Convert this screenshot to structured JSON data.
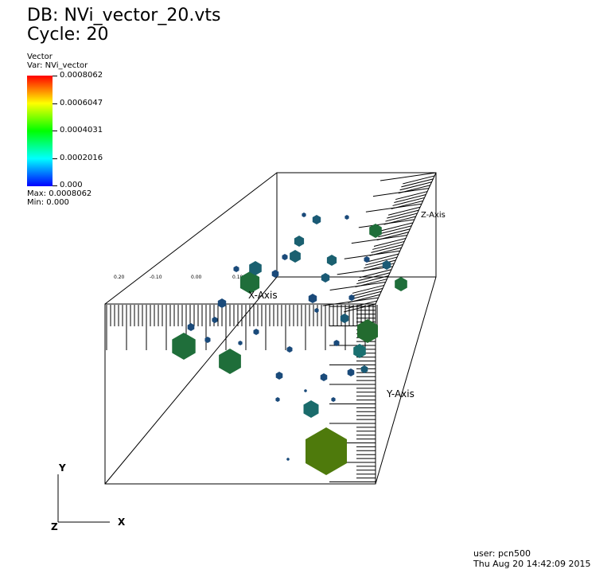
{
  "header": {
    "db_line": "DB: NVi_vector_20.vts",
    "cycle_line": "Cycle: 20"
  },
  "legend": {
    "plot_type": "Vector",
    "var_line": "Var: NVi_vector",
    "ticks": [
      "0.0008062",
      "0.0006047",
      "0.0004031",
      "0.0002016",
      "0.000"
    ],
    "max_line": "Max:  0.0008062",
    "min_line": "Min:  0.000",
    "colors": [
      "#ff0000",
      "#ffff00",
      "#00ff00",
      "#00ffff",
      "#0000ff"
    ]
  },
  "axes": {
    "x_axis_title": "X-Axis",
    "y_axis_title": "Y-Axis",
    "z_axis_title": "Z-Axis",
    "triad_x": "X",
    "triad_y": "Y",
    "triad_z": "Z",
    "x_ticks": [
      "0.20",
      "-0.10",
      "0.00",
      "0.10"
    ]
  },
  "footer": {
    "user": "user: pcn500",
    "timestamp": "Thu Aug 20 14:42:09 2015"
  }
}
